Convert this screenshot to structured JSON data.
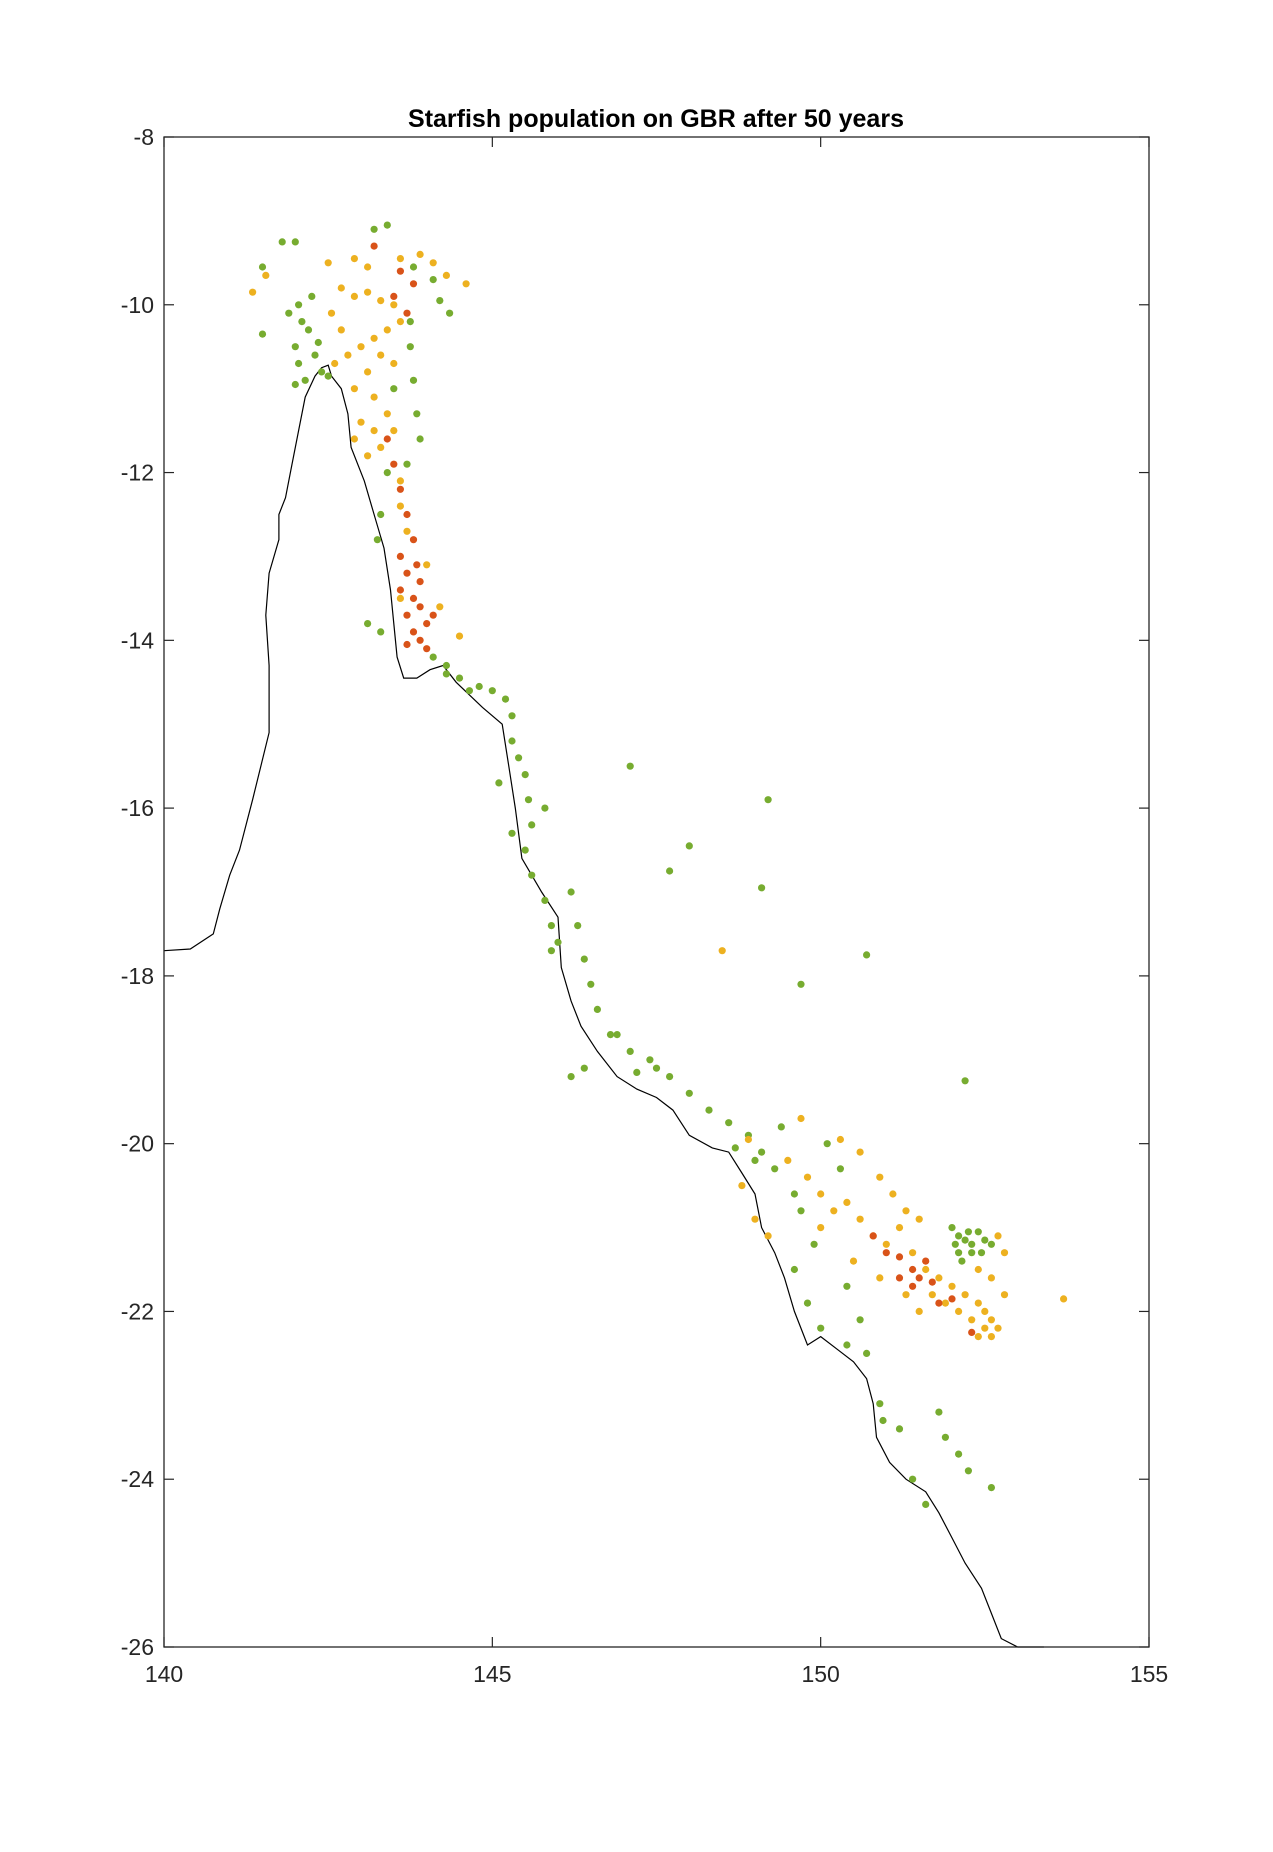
{
  "chart_data": {
    "type": "scatter",
    "title": "Starfish population on GBR after 50 years",
    "xlabel": "",
    "ylabel": "",
    "xlim": [
      140,
      155
    ],
    "ylim": [
      -26,
      -8
    ],
    "xticks": [
      140,
      145,
      150,
      155
    ],
    "yticks": [
      -8,
      -10,
      -12,
      -14,
      -16,
      -18,
      -20,
      -22,
      -24,
      -26
    ],
    "grid": false,
    "legend": "none",
    "colors": {
      "green": "#77ac30",
      "yellow": "#edb120",
      "red": "#d95319",
      "coast": "#000000"
    },
    "coastline": [
      [
        140.0,
        -17.7
      ],
      [
        140.4,
        -17.68
      ],
      [
        140.75,
        -17.5
      ],
      [
        140.85,
        -17.2
      ],
      [
        141.0,
        -16.8
      ],
      [
        141.15,
        -16.5
      ],
      [
        141.35,
        -15.9
      ],
      [
        141.6,
        -15.1
      ],
      [
        141.6,
        -14.3
      ],
      [
        141.55,
        -13.7
      ],
      [
        141.6,
        -13.2
      ],
      [
        141.75,
        -12.8
      ],
      [
        141.75,
        -12.5
      ],
      [
        141.85,
        -12.3
      ],
      [
        141.95,
        -11.9
      ],
      [
        142.05,
        -11.5
      ],
      [
        142.15,
        -11.1
      ],
      [
        142.3,
        -10.85
      ],
      [
        142.4,
        -10.75
      ],
      [
        142.5,
        -10.72
      ],
      [
        142.55,
        -10.85
      ],
      [
        142.7,
        -11.0
      ],
      [
        142.8,
        -11.3
      ],
      [
        142.85,
        -11.7
      ],
      [
        143.05,
        -12.1
      ],
      [
        143.2,
        -12.5
      ],
      [
        143.35,
        -12.9
      ],
      [
        143.45,
        -13.4
      ],
      [
        143.5,
        -13.8
      ],
      [
        143.55,
        -14.2
      ],
      [
        143.65,
        -14.45
      ],
      [
        143.85,
        -14.45
      ],
      [
        144.05,
        -14.35
      ],
      [
        144.25,
        -14.3
      ],
      [
        144.45,
        -14.5
      ],
      [
        144.85,
        -14.8
      ],
      [
        145.15,
        -15.0
      ],
      [
        145.25,
        -15.5
      ],
      [
        145.35,
        -16.0
      ],
      [
        145.45,
        -16.6
      ],
      [
        145.75,
        -17.0
      ],
      [
        146.0,
        -17.3
      ],
      [
        146.05,
        -17.9
      ],
      [
        146.2,
        -18.3
      ],
      [
        146.35,
        -18.6
      ],
      [
        146.6,
        -18.9
      ],
      [
        146.9,
        -19.2
      ],
      [
        147.2,
        -19.35
      ],
      [
        147.5,
        -19.45
      ],
      [
        147.75,
        -19.6
      ],
      [
        148.0,
        -19.9
      ],
      [
        148.35,
        -20.05
      ],
      [
        148.6,
        -20.1
      ],
      [
        148.8,
        -20.35
      ],
      [
        149.0,
        -20.6
      ],
      [
        149.1,
        -21.0
      ],
      [
        149.3,
        -21.3
      ],
      [
        149.45,
        -21.6
      ],
      [
        149.6,
        -22.0
      ],
      [
        149.8,
        -22.4
      ],
      [
        150.0,
        -22.3
      ],
      [
        150.25,
        -22.45
      ],
      [
        150.5,
        -22.6
      ],
      [
        150.7,
        -22.8
      ],
      [
        150.8,
        -23.1
      ],
      [
        150.85,
        -23.5
      ],
      [
        151.05,
        -23.8
      ],
      [
        151.3,
        -24.0
      ],
      [
        151.6,
        -24.15
      ],
      [
        151.8,
        -24.4
      ],
      [
        152.0,
        -24.7
      ],
      [
        152.2,
        -25.0
      ],
      [
        152.45,
        -25.3
      ],
      [
        152.6,
        -25.6
      ],
      [
        152.75,
        -25.9
      ],
      [
        153.0,
        -26.0
      ],
      [
        153.4,
        -26.0
      ]
    ],
    "series": [
      {
        "color": "green",
        "points": [
          [
            141.5,
            -9.55
          ],
          [
            141.5,
            -10.35
          ],
          [
            141.8,
            -9.25
          ],
          [
            142.0,
            -9.25
          ],
          [
            141.9,
            -10.1
          ],
          [
            142.0,
            -10.5
          ],
          [
            142.05,
            -10.7
          ],
          [
            142.15,
            -10.9
          ],
          [
            142.2,
            -10.3
          ],
          [
            142.3,
            -10.6
          ],
          [
            142.4,
            -10.8
          ],
          [
            142.5,
            -10.85
          ],
          [
            142.05,
            -10.0
          ],
          [
            142.25,
            -9.9
          ],
          [
            142.1,
            -10.2
          ],
          [
            142.35,
            -10.45
          ],
          [
            142.0,
            -10.95
          ],
          [
            143.2,
            -9.1
          ],
          [
            143.4,
            -9.05
          ],
          [
            143.8,
            -9.55
          ],
          [
            144.1,
            -9.7
          ],
          [
            144.2,
            -9.95
          ],
          [
            144.35,
            -10.1
          ],
          [
            143.75,
            -10.2
          ],
          [
            143.75,
            -10.5
          ],
          [
            143.8,
            -10.9
          ],
          [
            143.85,
            -11.3
          ],
          [
            143.9,
            -11.6
          ],
          [
            143.7,
            -11.9
          ],
          [
            143.5,
            -11.0
          ],
          [
            143.4,
            -12.0
          ],
          [
            143.3,
            -12.5
          ],
          [
            143.25,
            -12.8
          ],
          [
            144.1,
            -14.2
          ],
          [
            144.3,
            -14.3
          ],
          [
            144.5,
            -14.45
          ],
          [
            144.65,
            -14.6
          ],
          [
            144.8,
            -14.55
          ],
          [
            145.0,
            -14.6
          ],
          [
            145.2,
            -14.7
          ],
          [
            145.3,
            -14.9
          ],
          [
            145.3,
            -15.2
          ],
          [
            145.4,
            -15.4
          ],
          [
            145.5,
            -15.6
          ],
          [
            145.55,
            -15.9
          ],
          [
            145.6,
            -16.2
          ],
          [
            145.5,
            -16.5
          ],
          [
            145.6,
            -16.8
          ],
          [
            145.8,
            -17.1
          ],
          [
            145.9,
            -17.4
          ],
          [
            146.0,
            -17.6
          ],
          [
            146.2,
            -17.0
          ],
          [
            146.3,
            -17.4
          ],
          [
            146.4,
            -17.8
          ],
          [
            146.5,
            -18.1
          ],
          [
            146.6,
            -18.4
          ],
          [
            146.8,
            -18.7
          ],
          [
            147.1,
            -18.9
          ],
          [
            147.4,
            -19.0
          ],
          [
            147.7,
            -19.2
          ],
          [
            148.0,
            -19.4
          ],
          [
            148.3,
            -19.6
          ],
          [
            148.6,
            -19.75
          ],
          [
            148.9,
            -19.9
          ],
          [
            149.1,
            -20.1
          ],
          [
            149.3,
            -20.3
          ],
          [
            149.6,
            -20.6
          ],
          [
            149.0,
            -20.2
          ],
          [
            148.7,
            -20.05
          ],
          [
            147.5,
            -19.1
          ],
          [
            147.2,
            -19.15
          ],
          [
            146.9,
            -18.7
          ],
          [
            146.4,
            -19.1
          ],
          [
            146.2,
            -19.2
          ],
          [
            145.8,
            -16.0
          ],
          [
            145.1,
            -15.7
          ],
          [
            145.3,
            -16.3
          ],
          [
            145.9,
            -17.7
          ],
          [
            147.1,
            -15.5
          ],
          [
            149.2,
            -15.9
          ],
          [
            148.0,
            -16.45
          ],
          [
            147.7,
            -16.75
          ],
          [
            149.1,
            -16.95
          ],
          [
            150.7,
            -17.75
          ],
          [
            149.7,
            -18.1
          ],
          [
            152.2,
            -19.25
          ],
          [
            149.7,
            -20.8
          ],
          [
            149.9,
            -21.2
          ],
          [
            149.6,
            -21.5
          ],
          [
            149.8,
            -21.9
          ],
          [
            150.0,
            -22.2
          ],
          [
            150.4,
            -21.7
          ],
          [
            150.6,
            -22.1
          ],
          [
            150.4,
            -22.4
          ],
          [
            150.7,
            -22.5
          ],
          [
            150.9,
            -23.1
          ],
          [
            150.95,
            -23.3
          ],
          [
            151.2,
            -23.4
          ],
          [
            151.8,
            -23.2
          ],
          [
            151.9,
            -23.5
          ],
          [
            152.1,
            -23.7
          ],
          [
            152.25,
            -23.9
          ],
          [
            152.6,
            -24.1
          ],
          [
            151.4,
            -24.0
          ],
          [
            151.6,
            -24.3
          ],
          [
            152.0,
            -21.0
          ],
          [
            152.1,
            -21.1
          ],
          [
            152.2,
            -21.15
          ],
          [
            152.3,
            -21.2
          ],
          [
            152.4,
            -21.05
          ],
          [
            152.5,
            -21.15
          ],
          [
            152.1,
            -21.3
          ],
          [
            152.3,
            -21.3
          ],
          [
            152.05,
            -21.2
          ],
          [
            152.25,
            -21.05
          ],
          [
            152.45,
            -21.3
          ],
          [
            152.6,
            -21.2
          ],
          [
            152.15,
            -21.4
          ],
          [
            149.4,
            -19.8
          ],
          [
            150.1,
            -20.0
          ],
          [
            150.3,
            -20.3
          ],
          [
            143.1,
            -13.8
          ],
          [
            143.3,
            -13.9
          ],
          [
            144.3,
            -14.4
          ]
        ]
      },
      {
        "color": "yellow",
        "points": [
          [
            141.35,
            -9.85
          ],
          [
            141.55,
            -9.65
          ],
          [
            142.5,
            -9.5
          ],
          [
            142.9,
            -9.45
          ],
          [
            143.1,
            -9.55
          ],
          [
            143.6,
            -9.45
          ],
          [
            143.9,
            -9.4
          ],
          [
            144.1,
            -9.5
          ],
          [
            144.3,
            -9.65
          ],
          [
            144.6,
            -9.75
          ],
          [
            142.7,
            -9.8
          ],
          [
            142.9,
            -9.9
          ],
          [
            143.1,
            -9.85
          ],
          [
            143.3,
            -9.95
          ],
          [
            143.5,
            -10.0
          ],
          [
            143.6,
            -10.2
          ],
          [
            143.4,
            -10.3
          ],
          [
            143.2,
            -10.4
          ],
          [
            143.0,
            -10.5
          ],
          [
            142.8,
            -10.6
          ],
          [
            142.7,
            -10.3
          ],
          [
            142.55,
            -10.1
          ],
          [
            142.6,
            -10.7
          ],
          [
            143.3,
            -10.6
          ],
          [
            143.5,
            -10.7
          ],
          [
            143.1,
            -10.8
          ],
          [
            142.9,
            -11.0
          ],
          [
            143.2,
            -11.1
          ],
          [
            143.4,
            -11.3
          ],
          [
            143.0,
            -11.4
          ],
          [
            143.2,
            -11.5
          ],
          [
            142.9,
            -11.6
          ],
          [
            143.1,
            -11.8
          ],
          [
            143.5,
            -11.5
          ],
          [
            143.3,
            -11.7
          ],
          [
            143.6,
            -12.1
          ],
          [
            143.6,
            -12.4
          ],
          [
            143.7,
            -12.7
          ],
          [
            144.0,
            -13.1
          ],
          [
            144.2,
            -13.6
          ],
          [
            144.5,
            -13.95
          ],
          [
            143.6,
            -13.5
          ],
          [
            148.5,
            -17.7
          ],
          [
            153.7,
            -21.85
          ],
          [
            148.8,
            -20.5
          ],
          [
            149.0,
            -20.9
          ],
          [
            149.2,
            -21.1
          ],
          [
            149.5,
            -20.2
          ],
          [
            149.8,
            -20.4
          ],
          [
            150.0,
            -20.6
          ],
          [
            150.2,
            -20.8
          ],
          [
            150.4,
            -20.7
          ],
          [
            150.6,
            -20.9
          ],
          [
            150.8,
            -21.1
          ],
          [
            151.0,
            -21.2
          ],
          [
            151.2,
            -21.0
          ],
          [
            151.4,
            -21.3
          ],
          [
            151.6,
            -21.5
          ],
          [
            151.8,
            -21.6
          ],
          [
            152.0,
            -21.7
          ],
          [
            152.2,
            -21.8
          ],
          [
            152.4,
            -21.9
          ],
          [
            152.5,
            -22.0
          ],
          [
            152.6,
            -22.1
          ],
          [
            152.7,
            -22.2
          ],
          [
            152.6,
            -22.3
          ],
          [
            152.5,
            -22.2
          ],
          [
            152.3,
            -22.1
          ],
          [
            152.1,
            -22.0
          ],
          [
            151.9,
            -21.9
          ],
          [
            151.7,
            -21.8
          ],
          [
            152.7,
            -21.1
          ],
          [
            152.8,
            -21.3
          ],
          [
            152.4,
            -21.5
          ],
          [
            152.6,
            -21.6
          ],
          [
            152.8,
            -21.8
          ],
          [
            150.3,
            -19.95
          ],
          [
            150.6,
            -20.1
          ],
          [
            150.9,
            -20.4
          ],
          [
            151.1,
            -20.6
          ],
          [
            151.3,
            -20.8
          ],
          [
            151.5,
            -20.9
          ],
          [
            150.0,
            -21.0
          ],
          [
            150.5,
            -21.4
          ],
          [
            150.9,
            -21.6
          ],
          [
            151.5,
            -22.0
          ],
          [
            151.3,
            -21.8
          ],
          [
            152.4,
            -22.3
          ],
          [
            149.7,
            -19.7
          ],
          [
            148.9,
            -19.95
          ]
        ]
      },
      {
        "color": "red",
        "points": [
          [
            143.2,
            -9.3
          ],
          [
            143.6,
            -9.6
          ],
          [
            143.8,
            -9.75
          ],
          [
            143.5,
            -9.9
          ],
          [
            143.7,
            -10.1
          ],
          [
            143.4,
            -11.6
          ],
          [
            143.5,
            -11.9
          ],
          [
            143.6,
            -12.2
          ],
          [
            143.7,
            -12.5
          ],
          [
            143.8,
            -12.8
          ],
          [
            143.6,
            -13.0
          ],
          [
            143.7,
            -13.2
          ],
          [
            143.9,
            -13.3
          ],
          [
            143.8,
            -13.5
          ],
          [
            143.7,
            -13.7
          ],
          [
            143.9,
            -13.6
          ],
          [
            144.0,
            -13.8
          ],
          [
            143.8,
            -13.9
          ],
          [
            144.1,
            -13.7
          ],
          [
            143.9,
            -14.0
          ],
          [
            144.0,
            -14.1
          ],
          [
            143.7,
            -14.05
          ],
          [
            143.6,
            -13.4
          ],
          [
            143.85,
            -13.1
          ],
          [
            150.8,
            -21.1
          ],
          [
            151.0,
            -21.3
          ],
          [
            151.2,
            -21.35
          ],
          [
            151.4,
            -21.5
          ],
          [
            151.5,
            -21.6
          ],
          [
            151.7,
            -21.65
          ],
          [
            151.6,
            -21.4
          ],
          [
            151.8,
            -21.9
          ],
          [
            152.0,
            -21.85
          ],
          [
            151.2,
            -21.6
          ],
          [
            152.3,
            -22.25
          ],
          [
            151.4,
            -21.7
          ]
        ]
      }
    ]
  }
}
